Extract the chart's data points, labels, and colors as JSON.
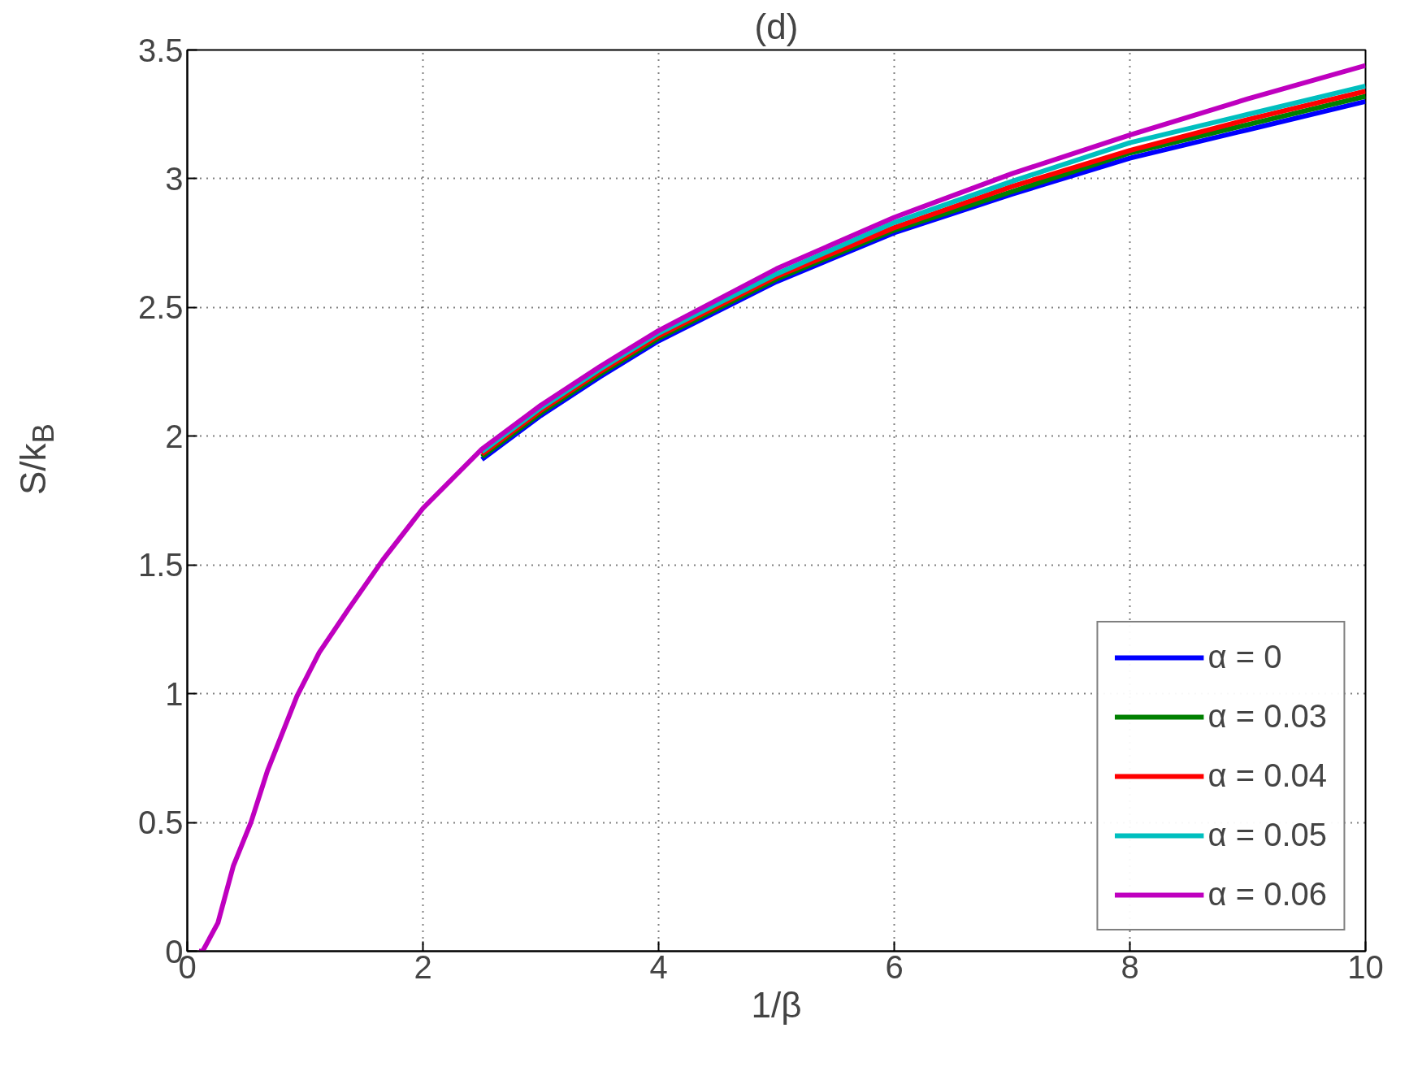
{
  "chart_data": {
    "type": "line",
    "title": "(d)",
    "xlabel": "1/β",
    "ylabel": "S/k$_{B}$",
    "x": [
      0.1,
      0.13,
      0.26,
      0.39,
      0.54,
      0.68,
      0.93,
      1.12,
      1.37,
      1.66,
      2,
      2.5,
      3,
      3.5,
      4,
      5,
      6,
      7,
      8,
      9,
      10
    ],
    "series": [
      {
        "name": "α = 0",
        "color": "#0000ff",
        "values": [
          null,
          null,
          null,
          null,
          null,
          null,
          null,
          null,
          null,
          null,
          null,
          1.91,
          2.08,
          2.23,
          2.37,
          2.6,
          2.79,
          2.94,
          3.08,
          3.19,
          3.3
        ]
      },
      {
        "name": "α = 0.03",
        "color": "#008000",
        "values": [
          null,
          null,
          null,
          null,
          null,
          null,
          null,
          null,
          null,
          null,
          null,
          1.92,
          2.09,
          2.24,
          2.38,
          2.61,
          2.8,
          2.95,
          3.1,
          3.21,
          3.32
        ]
      },
      {
        "name": "α = 0.04",
        "color": "#ff0000",
        "values": [
          null,
          null,
          null,
          null,
          null,
          null,
          null,
          null,
          null,
          null,
          null,
          1.93,
          2.1,
          2.25,
          2.39,
          2.62,
          2.81,
          2.97,
          3.11,
          3.23,
          3.34
        ]
      },
      {
        "name": "α = 0.05",
        "color": "#00bfbf",
        "values": [
          null,
          null,
          null,
          null,
          null,
          null,
          null,
          null,
          null,
          null,
          null,
          1.94,
          2.11,
          2.26,
          2.4,
          2.63,
          2.83,
          2.99,
          3.14,
          3.25,
          3.36
        ]
      },
      {
        "name": "α = 0.06",
        "color": "#bf00bf",
        "values": [
          0,
          0,
          0.11,
          0.33,
          0.5,
          0.7,
          0.99,
          1.16,
          1.33,
          1.52,
          1.72,
          1.95,
          2.12,
          2.27,
          2.41,
          2.65,
          2.85,
          3.02,
          3.17,
          3.31,
          3.44
        ]
      }
    ],
    "xlim": [
      0,
      10
    ],
    "xticks": [
      0,
      2,
      4,
      6,
      8,
      10
    ],
    "ylim": [
      0,
      3.5
    ],
    "yticks": [
      0,
      0.5,
      1,
      1.5,
      2,
      2.5,
      3,
      3.5
    ],
    "grid": true,
    "legend": "bottom right",
    "line_style": "solid",
    "marker": "none"
  }
}
